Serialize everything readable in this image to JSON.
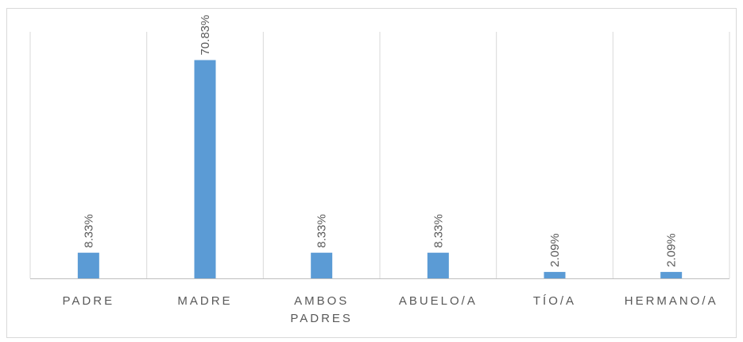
{
  "chart_data": {
    "type": "bar",
    "categories": [
      "PADRE",
      "MADRE",
      "AMBOS PADRES",
      "ABUELO/A",
      "TÍO/A",
      "HERMANO/A"
    ],
    "values": [
      8.33,
      70.83,
      8.33,
      8.33,
      2.09,
      2.09
    ],
    "value_labels": [
      "8.33%",
      "70.83%",
      "8.33%",
      "8.33%",
      "2.09%",
      "2.09%"
    ],
    "color": "#5b9bd5",
    "ylim": [
      0,
      80
    ]
  }
}
